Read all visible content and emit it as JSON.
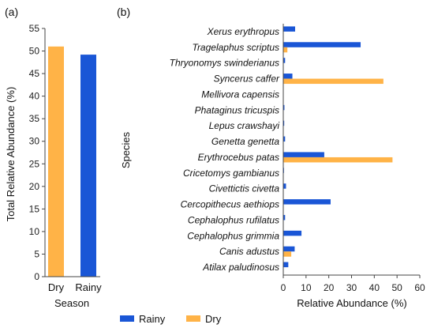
{
  "colors": {
    "dry": "#FFB347",
    "rainy": "#1A56D6",
    "axis": "#444444",
    "grid": "#d9d9d9"
  },
  "chart_data": [
    {
      "type": "bar",
      "panel_label": "(a)",
      "categories": [
        "Dry",
        "Rainy"
      ],
      "values": [
        51.0,
        49.2
      ],
      "xlabel": "Season",
      "ylabel": "Total Relative Abundance (%)",
      "ylim": [
        0,
        55
      ],
      "yticks": [
        "0",
        "5",
        "10",
        "15",
        "20",
        "25",
        "30",
        "35",
        "40",
        "45",
        "50",
        "55"
      ],
      "bar_colors": [
        "#FFB347",
        "#1A56D6"
      ],
      "grid": false
    },
    {
      "type": "bar",
      "orientation": "horizontal",
      "panel_label": "(b)",
      "categories": [
        "Xerus erythropus",
        "Tragelaphus scriptus",
        "Thryonomys swinderianus",
        "Syncerus caffer",
        "Mellivora capensis",
        "Phataginus tricuspis",
        "Lepus crawshayi",
        "Genetta genetta",
        "Erythrocebus patas",
        "Cricetomys gambianus",
        "Civettictis civetta",
        "Cercopithecus aethiops",
        "Cephalophus rufilatus",
        "Cephalophus grimmia",
        "Canis adustus",
        "Atilax paludinosus"
      ],
      "series": [
        {
          "name": "Rainy",
          "color": "#1A56D6",
          "values": [
            5.2,
            34.0,
            0.8,
            4.0,
            0.0,
            0.5,
            0.4,
            0.8,
            18.0,
            0.3,
            1.2,
            20.8,
            0.8,
            8.0,
            5.0,
            2.2
          ]
        },
        {
          "name": "Dry",
          "color": "#FFB347",
          "values": [
            0.0,
            1.8,
            0.0,
            44.0,
            0.0,
            0.0,
            0.0,
            0.0,
            48.0,
            0.0,
            0.0,
            0.0,
            0.0,
            0.0,
            3.5,
            0.0
          ]
        }
      ],
      "xlabel": "Relative Abundance (%)",
      "ylabel": "Species",
      "xlim": [
        0,
        60
      ],
      "xticks": [
        "0",
        "10",
        "20",
        "30",
        "40",
        "50",
        "60"
      ],
      "legend_position": "bottom-left",
      "grid": false
    }
  ],
  "legend": {
    "items": [
      "Rainy",
      "Dry"
    ]
  }
}
